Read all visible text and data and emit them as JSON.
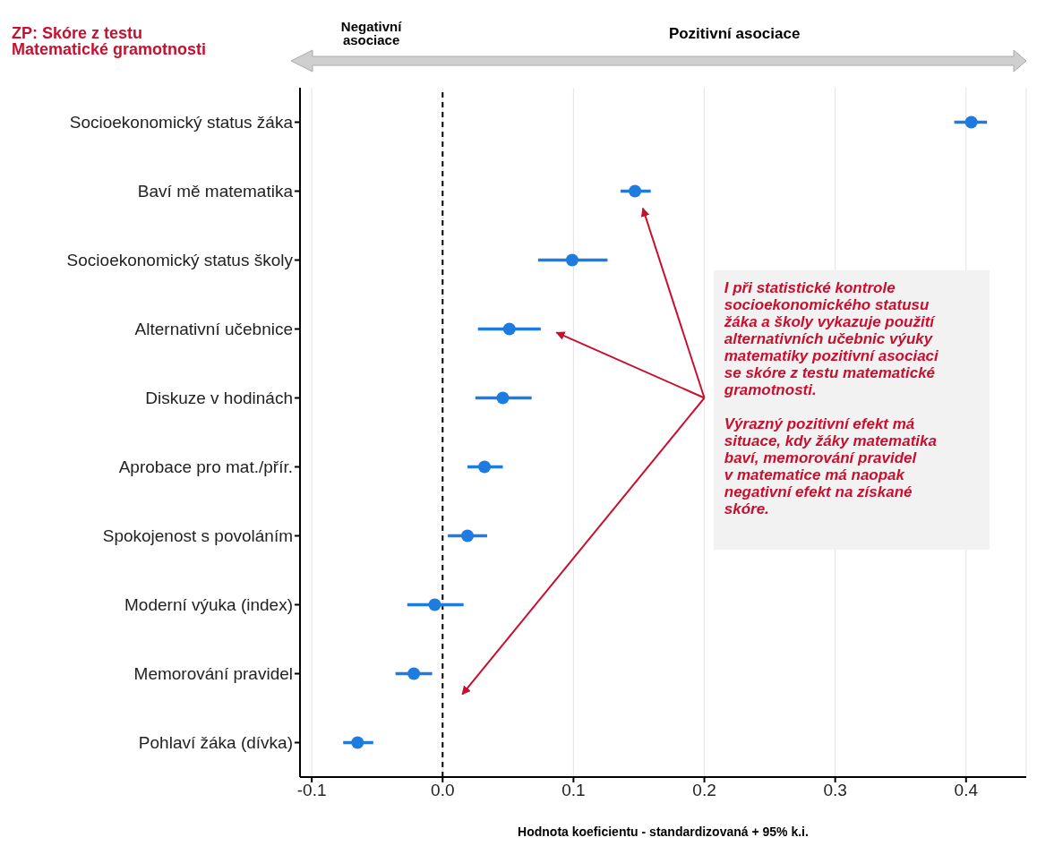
{
  "chart_data": {
    "type": "scatter",
    "title": "ZP: Skóre z testu\nMatematické gramotnosti",
    "xlabel": "Hodnota koeficientu - standardizovaná  + 95% k.i.",
    "orientation": "horizontal",
    "categories": [
      "Socioekonomický status žáka",
      "Baví mě matematika",
      "Socioekonomický status školy",
      "Alternativní učebnice",
      "Diskuze v hodinách",
      "Aprobace pro mat./přír.",
      "Spokojenost s povoláním",
      "Moderní výuka (index)",
      "Memorování pravidel",
      "Pohlaví žáka (dívka)"
    ],
    "series": [
      {
        "color": "#1e7be0",
        "values": [
          0.404,
          0.147,
          0.099,
          0.051,
          0.046,
          0.032,
          0.019,
          -0.006,
          -0.022,
          -0.065
        ],
        "errors": [
          [
            0.391,
            0.416
          ],
          [
            0.136,
            0.159
          ],
          [
            0.073,
            0.126
          ],
          [
            0.027,
            0.075
          ],
          [
            0.025,
            0.068
          ],
          [
            0.019,
            0.046
          ],
          [
            0.004,
            0.034
          ],
          [
            -0.027,
            0.016
          ],
          [
            -0.036,
            -0.008
          ],
          [
            -0.076,
            -0.053
          ]
        ]
      }
    ],
    "xlim": [
      -0.109,
      0.446
    ],
    "xticks": [
      -0.1,
      {
        "value": 0,
        "label": "0.0"
      },
      0.1,
      0.2,
      0.3,
      0.4
    ],
    "grid": "x",
    "marker": "circle",
    "ref_lines": [
      {
        "axis": "x",
        "value": 0,
        "color": "#000000",
        "line_style": "dashed"
      }
    ],
    "annotations": [
      "Negativní\nasociace",
      "Pozitivní asociace",
      "I při statistické kontrole\nsocioekonomického statusu\nžáka a školy vykazuje použití\nalternativních učebnic výuky\nmatematiky pozitivní asociaci\nse skóre z testu matematické\ngramotnosti.\n\nVýrazný pozitivní efekt má\nsituace, kdy žáky matematika\nbaví, memorování pravidel\nv matematice má naopak\nnegativní efekt na získané\nskóre."
    ]
  }
}
